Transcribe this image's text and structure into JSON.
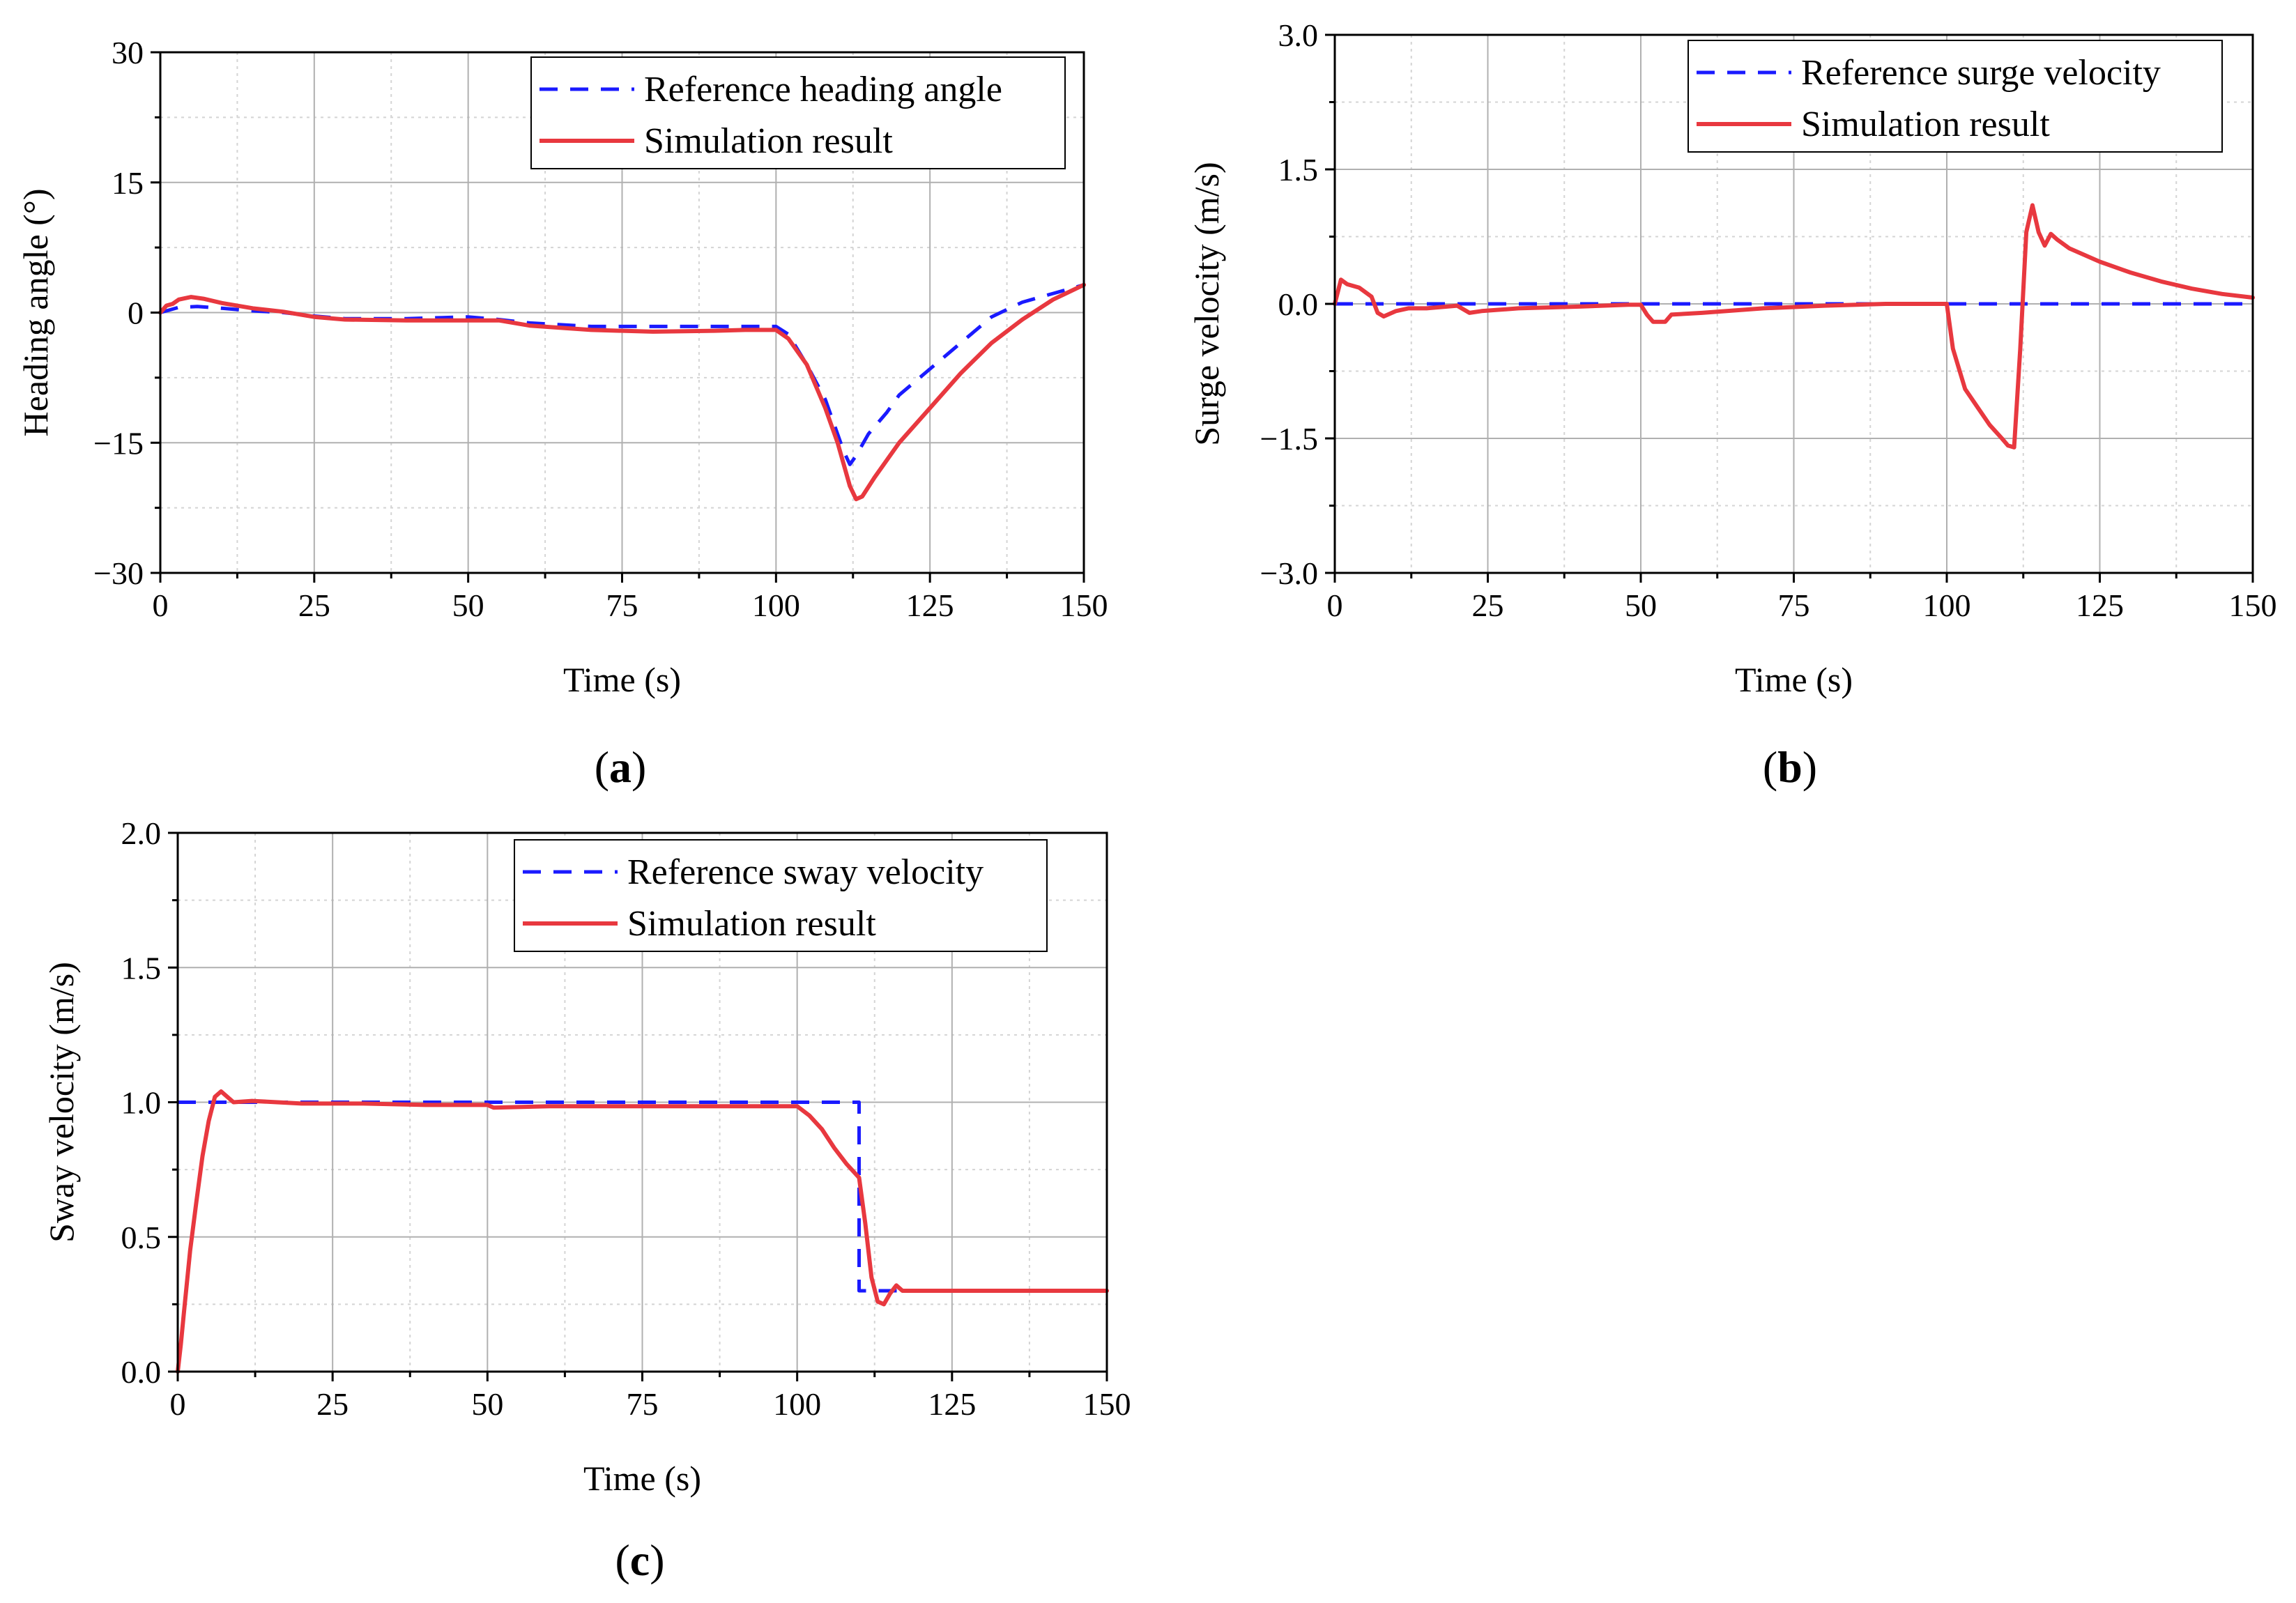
{
  "chart_data": [
    {
      "id": "a",
      "panel_label": "a",
      "type": "line",
      "xlabel": "Time (s)",
      "ylabel": "Heading angle  (°)",
      "xlim": [
        0,
        150
      ],
      "ylim": [
        -30,
        30
      ],
      "xticks": [
        0,
        25,
        50,
        75,
        100,
        125,
        150
      ],
      "yticks": [
        -30,
        -15,
        0,
        15,
        30
      ],
      "xtick_labels": [
        "0",
        "25",
        "50",
        "75",
        "100",
        "125",
        "150"
      ],
      "ytick_labels": [
        "−30",
        "−15",
        "0",
        "15",
        "30"
      ],
      "grid": true,
      "legend_position": "top-right",
      "series": [
        {
          "name": "Reference heading angle",
          "style": "dashed",
          "color": "#1a1aff",
          "points": [
            [
              0,
              0
            ],
            [
              3,
              0.6
            ],
            [
              6,
              0.7
            ],
            [
              10,
              0.5
            ],
            [
              15,
              0.2
            ],
            [
              20,
              0
            ],
            [
              25,
              -0.4
            ],
            [
              30,
              -0.7
            ],
            [
              40,
              -0.7
            ],
            [
              50,
              -0.5
            ],
            [
              55,
              -0.8
            ],
            [
              60,
              -1.2
            ],
            [
              70,
              -1.6
            ],
            [
              80,
              -1.6
            ],
            [
              90,
              -1.6
            ],
            [
              100,
              -1.6
            ],
            [
              102,
              -2.5
            ],
            [
              105,
              -6
            ],
            [
              108,
              -10
            ],
            [
              110,
              -14
            ],
            [
              111,
              -16
            ],
            [
              112,
              -17.5
            ],
            [
              113,
              -16.5
            ],
            [
              115,
              -14
            ],
            [
              118,
              -11.5
            ],
            [
              120,
              -9.5
            ],
            [
              125,
              -6.5
            ],
            [
              130,
              -3.5
            ],
            [
              135,
              -0.5
            ],
            [
              140,
              1.2
            ],
            [
              145,
              2.2
            ],
            [
              150,
              3.2
            ]
          ]
        },
        {
          "name": "Simulation result",
          "style": "solid",
          "color": "#e8383f",
          "points": [
            [
              0,
              0
            ],
            [
              1,
              0.8
            ],
            [
              2,
              1
            ],
            [
              3,
              1.5
            ],
            [
              5,
              1.8
            ],
            [
              7,
              1.6
            ],
            [
              10,
              1.1
            ],
            [
              15,
              0.5
            ],
            [
              20,
              0.1
            ],
            [
              25,
              -0.5
            ],
            [
              30,
              -0.8
            ],
            [
              40,
              -0.9
            ],
            [
              50,
              -0.9
            ],
            [
              55,
              -0.9
            ],
            [
              60,
              -1.5
            ],
            [
              70,
              -2
            ],
            [
              80,
              -2.2
            ],
            [
              90,
              -2.1
            ],
            [
              95,
              -2
            ],
            [
              100,
              -2
            ],
            [
              102,
              -3
            ],
            [
              105,
              -6
            ],
            [
              108,
              -11
            ],
            [
              110,
              -15
            ],
            [
              112,
              -20
            ],
            [
              113,
              -21.5
            ],
            [
              114,
              -21.2
            ],
            [
              116,
              -19
            ],
            [
              120,
              -15
            ],
            [
              125,
              -11
            ],
            [
              130,
              -7
            ],
            [
              135,
              -3.5
            ],
            [
              140,
              -0.8
            ],
            [
              145,
              1.5
            ],
            [
              150,
              3.2
            ]
          ]
        }
      ]
    },
    {
      "id": "b",
      "panel_label": "b",
      "type": "line",
      "xlabel": "Time (s)",
      "ylabel": "Surge velocity (m/s)",
      "xlim": [
        0,
        150
      ],
      "ylim": [
        -3,
        3
      ],
      "xticks": [
        0,
        25,
        50,
        75,
        100,
        125,
        150
      ],
      "yticks": [
        -3,
        -1.5,
        0,
        1.5,
        3
      ],
      "xtick_labels": [
        "0",
        "25",
        "50",
        "75",
        "100",
        "125",
        "150"
      ],
      "ytick_labels": [
        "−3.0",
        "−1.5",
        "0.0",
        "1.5",
        "3.0"
      ],
      "grid": true,
      "legend_position": "top-right",
      "series": [
        {
          "name": "Reference surge velocity",
          "style": "dashed",
          "color": "#1a1aff",
          "points": [
            [
              0,
              0
            ],
            [
              150,
              0
            ]
          ]
        },
        {
          "name": "Simulation result",
          "style": "solid",
          "color": "#e8383f",
          "points": [
            [
              0,
              0
            ],
            [
              1,
              0.27
            ],
            [
              2,
              0.22
            ],
            [
              4,
              0.18
            ],
            [
              6,
              0.08
            ],
            [
              7,
              -0.1
            ],
            [
              8,
              -0.14
            ],
            [
              10,
              -0.08
            ],
            [
              12,
              -0.05
            ],
            [
              15,
              -0.05
            ],
            [
              20,
              -0.02
            ],
            [
              22,
              -0.1
            ],
            [
              24,
              -0.08
            ],
            [
              30,
              -0.05
            ],
            [
              40,
              -0.03
            ],
            [
              48,
              -0.01
            ],
            [
              50,
              -0.01
            ],
            [
              51,
              -0.12
            ],
            [
              52,
              -0.2
            ],
            [
              54,
              -0.2
            ],
            [
              55,
              -0.12
            ],
            [
              60,
              -0.1
            ],
            [
              70,
              -0.05
            ],
            [
              80,
              -0.02
            ],
            [
              90,
              0
            ],
            [
              100,
              0
            ],
            [
              101,
              -0.5
            ],
            [
              103,
              -0.95
            ],
            [
              105,
              -1.15
            ],
            [
              107,
              -1.35
            ],
            [
              109,
              -1.5
            ],
            [
              110,
              -1.58
            ],
            [
              111,
              -1.6
            ],
            [
              112,
              -0.5
            ],
            [
              113,
              0.8
            ],
            [
              114,
              1.1
            ],
            [
              115,
              0.8
            ],
            [
              116,
              0.65
            ],
            [
              117,
              0.78
            ],
            [
              118,
              0.72
            ],
            [
              120,
              0.62
            ],
            [
              125,
              0.47
            ],
            [
              130,
              0.35
            ],
            [
              135,
              0.25
            ],
            [
              140,
              0.17
            ],
            [
              145,
              0.11
            ],
            [
              150,
              0.07
            ]
          ]
        }
      ]
    },
    {
      "id": "c",
      "panel_label": "c",
      "type": "line",
      "xlabel": "Time (s)",
      "ylabel": "Sway velocity  (m/s)",
      "xlim": [
        0,
        150
      ],
      "ylim": [
        0,
        2
      ],
      "xticks": [
        0,
        25,
        50,
        75,
        100,
        125,
        150
      ],
      "yticks": [
        0,
        0.5,
        1,
        1.5,
        2
      ],
      "xtick_labels": [
        "0",
        "25",
        "50",
        "75",
        "100",
        "125",
        "150"
      ],
      "ytick_labels": [
        "0.0",
        "0.5",
        "1.0",
        "1.5",
        "2.0"
      ],
      "grid": true,
      "legend_position": "top-right",
      "series": [
        {
          "name": "Reference sway velocity",
          "style": "dashed",
          "color": "#1a1aff",
          "points": [
            [
              0,
              1
            ],
            [
              110,
              1
            ],
            [
              110,
              0.3
            ],
            [
              150,
              0.3
            ]
          ]
        },
        {
          "name": "Simulation result",
          "style": "solid",
          "color": "#e8383f",
          "points": [
            [
              0,
              0
            ],
            [
              0.5,
              0.1
            ],
            [
              1,
              0.22
            ],
            [
              2,
              0.45
            ],
            [
              3,
              0.63
            ],
            [
              4,
              0.8
            ],
            [
              5,
              0.93
            ],
            [
              6,
              1.02
            ],
            [
              7,
              1.04
            ],
            [
              8,
              1.02
            ],
            [
              9,
              1
            ],
            [
              12,
              1.005
            ],
            [
              20,
              0.995
            ],
            [
              30,
              0.995
            ],
            [
              40,
              0.99
            ],
            [
              50,
              0.99
            ],
            [
              51,
              0.98
            ],
            [
              60,
              0.985
            ],
            [
              70,
              0.985
            ],
            [
              80,
              0.985
            ],
            [
              90,
              0.985
            ],
            [
              100,
              0.985
            ],
            [
              102,
              0.95
            ],
            [
              104,
              0.9
            ],
            [
              106,
              0.83
            ],
            [
              108,
              0.77
            ],
            [
              110,
              0.72
            ],
            [
              111,
              0.55
            ],
            [
              112,
              0.35
            ],
            [
              113,
              0.26
            ],
            [
              114,
              0.25
            ],
            [
              115,
              0.29
            ],
            [
              116,
              0.32
            ],
            [
              117,
              0.3
            ],
            [
              120,
              0.3
            ],
            [
              130,
              0.3
            ],
            [
              150,
              0.3
            ]
          ]
        }
      ]
    }
  ]
}
